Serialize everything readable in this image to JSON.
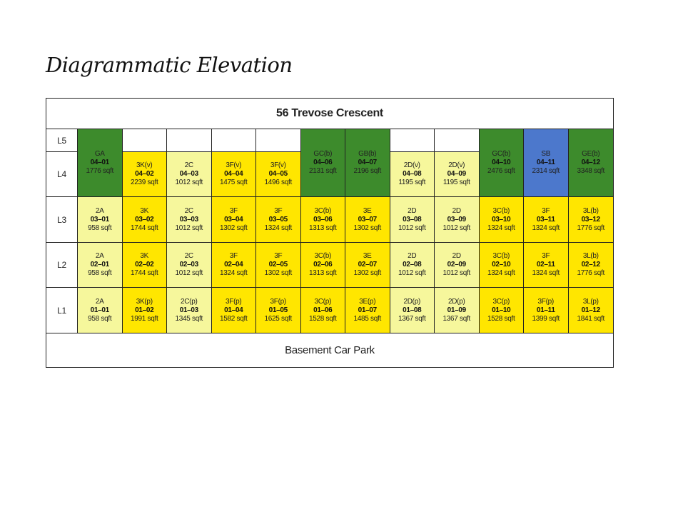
{
  "title": "Diagrammatic Elevation",
  "building": "56 Trevose Crescent",
  "basement": "Basement Car Park",
  "colors": {
    "yellow": "#ffe600",
    "light": "#f6f79c",
    "green": "#3d8b2c",
    "blue": "#4c78cc",
    "white": "#ffffff"
  },
  "levels": [
    "L5",
    "L4",
    "L3",
    "L2",
    "L1"
  ],
  "rows": {
    "L5L4": [
      {
        "span": true,
        "type": "GA",
        "unit": "04–01",
        "area": "1776 sqft",
        "color": "green"
      },
      {
        "type": "3K(v)",
        "unit": "04–02",
        "area": "2239 sqft",
        "color": "yellow"
      },
      {
        "type": "2C",
        "unit": "04–03",
        "area": "1012 sqft",
        "color": "light"
      },
      {
        "type": "3F(v)",
        "unit": "04–04",
        "area": "1475 sqft",
        "color": "yellow"
      },
      {
        "type": "3F(v)",
        "unit": "04–05",
        "area": "1496 sqft",
        "color": "yellow"
      },
      {
        "span": true,
        "type": "GC(b)",
        "unit": "04–06",
        "area": "2131 sqft",
        "color": "green"
      },
      {
        "span": true,
        "type": "GB(b)",
        "unit": "04–07",
        "area": "2196 sqft",
        "color": "green"
      },
      {
        "type": "2D(v)",
        "unit": "04–08",
        "area": "1195 sqft",
        "color": "light"
      },
      {
        "type": "2D(v)",
        "unit": "04–09",
        "area": "1195 sqft",
        "color": "light"
      },
      {
        "span": true,
        "type": "GC(b)",
        "unit": "04–10",
        "area": "2476 sqft",
        "color": "green"
      },
      {
        "span": true,
        "type": "SB",
        "unit": "04–11",
        "area": "2314 sqft",
        "color": "blue"
      },
      {
        "span": true,
        "type": "GE(b)",
        "unit": "04–12",
        "area": "3348 sqft",
        "color": "green"
      }
    ],
    "L3": [
      {
        "type": "2A",
        "unit": "03–01",
        "area": "958 sqft",
        "color": "light"
      },
      {
        "type": "3K",
        "unit": "03–02",
        "area": "1744 sqft",
        "color": "yellow"
      },
      {
        "type": "2C",
        "unit": "03–03",
        "area": "1012 sqft",
        "color": "light"
      },
      {
        "type": "3F",
        "unit": "03–04",
        "area": "1302 sqft",
        "color": "yellow"
      },
      {
        "type": "3F",
        "unit": "03–05",
        "area": "1324 sqft",
        "color": "yellow"
      },
      {
        "type": "3C(b)",
        "unit": "03–06",
        "area": "1313 sqft",
        "color": "yellow"
      },
      {
        "type": "3E",
        "unit": "03–07",
        "area": "1302 sqft",
        "color": "yellow"
      },
      {
        "type": "2D",
        "unit": "03–08",
        "area": "1012 sqft",
        "color": "light"
      },
      {
        "type": "2D",
        "unit": "03–09",
        "area": "1012 sqft",
        "color": "light"
      },
      {
        "type": "3C(b)",
        "unit": "03–10",
        "area": "1324 sqft",
        "color": "yellow"
      },
      {
        "type": "3F",
        "unit": "03–11",
        "area": "1324 sqft",
        "color": "yellow"
      },
      {
        "type": "3L(b)",
        "unit": "03–12",
        "area": "1776 sqft",
        "color": "yellow"
      }
    ],
    "L2": [
      {
        "type": "2A",
        "unit": "02–01",
        "area": "958 sqft",
        "color": "light"
      },
      {
        "type": "3K",
        "unit": "02–02",
        "area": "1744 sqft",
        "color": "yellow"
      },
      {
        "type": "2C",
        "unit": "02–03",
        "area": "1012 sqft",
        "color": "light"
      },
      {
        "type": "3F",
        "unit": "02–04",
        "area": "1324 sqft",
        "color": "yellow"
      },
      {
        "type": "3F",
        "unit": "02–05",
        "area": "1302 sqft",
        "color": "yellow"
      },
      {
        "type": "3C(b)",
        "unit": "02–06",
        "area": "1313 sqft",
        "color": "yellow"
      },
      {
        "type": "3E",
        "unit": "02–07",
        "area": "1302 sqft",
        "color": "yellow"
      },
      {
        "type": "2D",
        "unit": "02–08",
        "area": "1012 sqft",
        "color": "light"
      },
      {
        "type": "2D",
        "unit": "02–09",
        "area": "1012 sqft",
        "color": "light"
      },
      {
        "type": "3C(b)",
        "unit": "02–10",
        "area": "1324 sqft",
        "color": "yellow"
      },
      {
        "type": "3F",
        "unit": "02–11",
        "area": "1324 sqft",
        "color": "yellow"
      },
      {
        "type": "3L(b)",
        "unit": "02–12",
        "area": "1776 sqft",
        "color": "yellow"
      }
    ],
    "L1": [
      {
        "type": "2A",
        "unit": "01–01",
        "area": "958 sqft",
        "color": "light"
      },
      {
        "type": "3K(p)",
        "unit": "01–02",
        "area": "1991 sqft",
        "color": "yellow"
      },
      {
        "type": "2C(p)",
        "unit": "01–03",
        "area": "1345 sqft",
        "color": "light"
      },
      {
        "type": "3F(p)",
        "unit": "01–04",
        "area": "1582 sqft",
        "color": "yellow"
      },
      {
        "type": "3F(p)",
        "unit": "01–05",
        "area": "1625 sqft",
        "color": "yellow"
      },
      {
        "type": "3C(p)",
        "unit": "01–06",
        "area": "1528 sqft",
        "color": "yellow"
      },
      {
        "type": "3E(p)",
        "unit": "01–07",
        "area": "1485 sqft",
        "color": "yellow"
      },
      {
        "type": "2D(p)",
        "unit": "01–08",
        "area": "1367 sqft",
        "color": "light"
      },
      {
        "type": "2D(p)",
        "unit": "01–09",
        "area": "1367 sqft",
        "color": "light"
      },
      {
        "type": "3C(p)",
        "unit": "01–10",
        "area": "1528 sqft",
        "color": "yellow"
      },
      {
        "type": "3F(p)",
        "unit": "01–11",
        "area": "1399 sqft",
        "color": "yellow"
      },
      {
        "type": "3L(p)",
        "unit": "01–12",
        "area": "1841 sqft",
        "color": "yellow"
      }
    ]
  }
}
